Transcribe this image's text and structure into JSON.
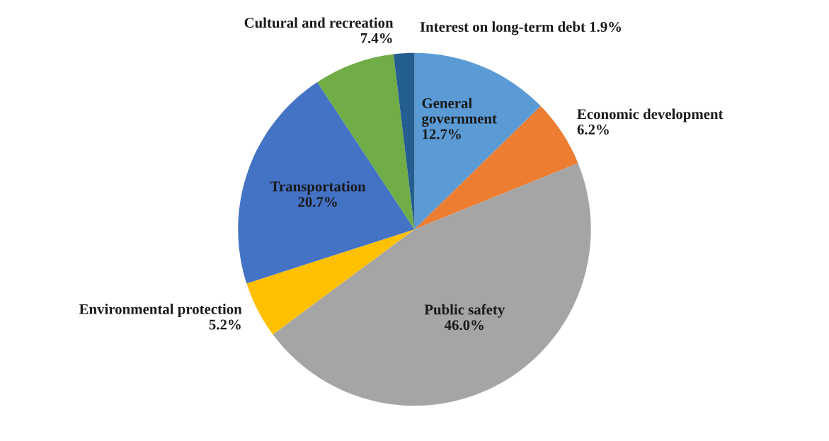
{
  "chart_data": {
    "type": "pie",
    "categories": [
      "General government",
      "Economic development",
      "Public safety",
      "Environmental protection",
      "Transportation",
      "Cultural and recreation",
      "Interest on long-term debt"
    ],
    "values": [
      12.7,
      6.2,
      46.0,
      5.2,
      20.7,
      7.4,
      1.9
    ],
    "colors": [
      "#5b9bd5",
      "#ed7d31",
      "#a5a5a5",
      "#ffc000",
      "#4472c4",
      "#70ad47",
      "#255e91"
    ],
    "value_labels": [
      "12.7%",
      "6.2%",
      "46.0%",
      "5.2%",
      "20.7%",
      "7.4%",
      "1.9%"
    ]
  }
}
